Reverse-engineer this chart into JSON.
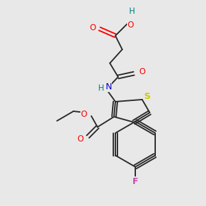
{
  "bg_color": "#e8e8e8",
  "bond_color": "#2a2a2a",
  "atom_colors": {
    "O": "#ff0000",
    "H_acid": "#008080",
    "N": "#0000cd",
    "S": "#cccc00",
    "F": "#cc44aa",
    "C": "#2a2a2a"
  },
  "fig_width": 3.0,
  "fig_height": 3.0,
  "dpi": 100
}
